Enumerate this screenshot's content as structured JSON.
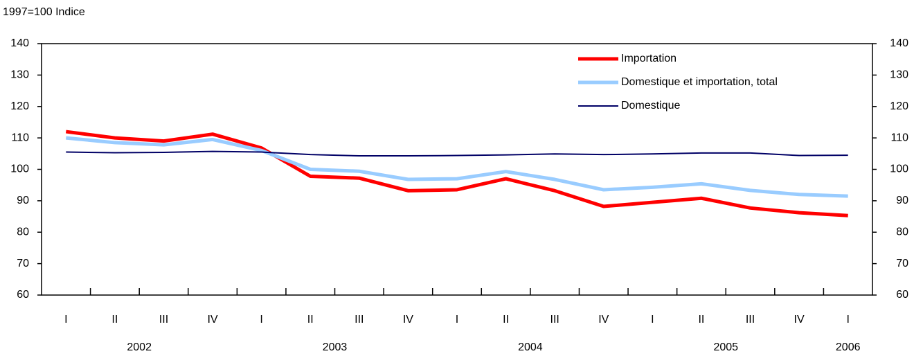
{
  "chart_data": {
    "type": "line",
    "ylabel": "1997=100 Indice",
    "categories": [
      "I",
      "II",
      "III",
      "IV",
      "I",
      "II",
      "III",
      "IV",
      "I",
      "II",
      "III",
      "IV",
      "I",
      "II",
      "III",
      "IV",
      "I"
    ],
    "year_labels": [
      "2002",
      null,
      null,
      null,
      "2003",
      null,
      null,
      null,
      "2004",
      null,
      null,
      null,
      "2005",
      null,
      null,
      null,
      "2006"
    ],
    "series": [
      {
        "name": "Importation",
        "color": "#ff0000",
        "values": [
          112,
          110,
          109,
          111.2,
          106.8,
          97.8,
          97.2,
          93.2,
          93.5,
          97,
          93.2,
          88.2,
          89.5,
          90.8,
          87.7,
          86.2,
          85.3
        ]
      },
      {
        "name": "Domestique et importation, total",
        "color": "#99ccff",
        "values": [
          110,
          108.5,
          107.8,
          109.5,
          106,
          100,
          99.4,
          96.8,
          97,
          99.3,
          96.8,
          93.5,
          94.3,
          95.4,
          93.3,
          92,
          91.5
        ]
      },
      {
        "name": "Domestique",
        "color": "#000066",
        "values": [
          105.5,
          105.3,
          105.4,
          105.7,
          105.5,
          104.7,
          104.3,
          104.3,
          104.4,
          104.6,
          104.9,
          104.7,
          104.9,
          105.2,
          105.2,
          104.4,
          104.5
        ]
      }
    ],
    "ylim": [
      60,
      140
    ],
    "yticks": [
      60,
      70,
      80,
      90,
      100,
      110,
      120,
      130,
      140
    ],
    "y2lim": [
      60,
      140
    ],
    "y2ticks": [
      60,
      70,
      80,
      90,
      100,
      110,
      120,
      130,
      140
    ],
    "grid": false
  }
}
